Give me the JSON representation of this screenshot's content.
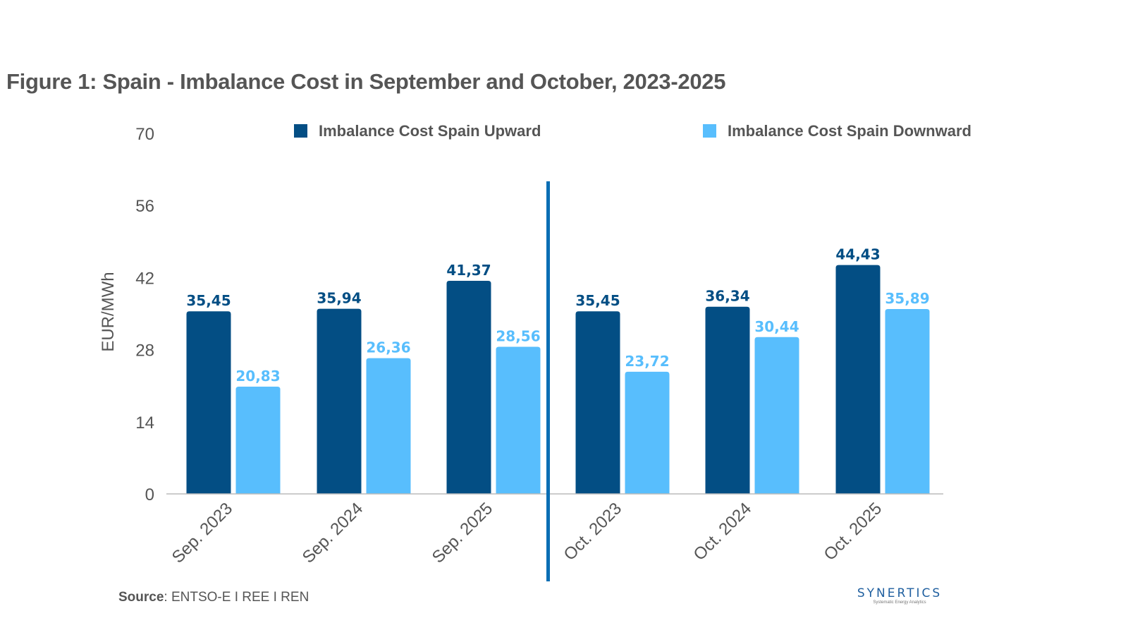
{
  "chart_data": {
    "type": "bar",
    "title": "Figure 1: Spain - Imbalance Cost in September and October, 2023-2025",
    "xlabel": "",
    "ylabel": "EUR/MWh",
    "ylim": [
      0,
      70
    ],
    "yticks": [
      0,
      14,
      28,
      42,
      56,
      70
    ],
    "grid": false,
    "legend_position": "top",
    "categories": [
      "Sep. 2023",
      "Sep. 2024",
      "Sep. 2025",
      "Oct. 2023",
      "Oct. 2024",
      "Oct. 2025"
    ],
    "series": [
      {
        "name": "Imbalance Cost Spain Upward",
        "color": "#034e84",
        "values": [
          35.45,
          35.94,
          41.37,
          35.45,
          36.34,
          44.43
        ],
        "labels": [
          "35,45",
          "35,94",
          "41,37",
          "35,45",
          "36,34",
          "44,43"
        ]
      },
      {
        "name": "Imbalance Cost Spain Downward",
        "color": "#58befd",
        "values": [
          20.83,
          26.36,
          28.56,
          23.72,
          30.44,
          35.89
        ],
        "labels": [
          "20,83",
          "26,36",
          "28,56",
          "23,72",
          "30,44",
          "35,89"
        ]
      }
    ],
    "annotations": [
      {
        "type": "vertical-divider",
        "between": [
          "Sep. 2025",
          "Oct. 2023"
        ],
        "color": "#0a6eb4"
      }
    ]
  },
  "footer": {
    "source_label": "Source",
    "source_text": ": ENTSO-E I REE I REN"
  },
  "logo": {
    "name": "SYNERTICS",
    "tagline": "Systematic Energy Analytics"
  }
}
